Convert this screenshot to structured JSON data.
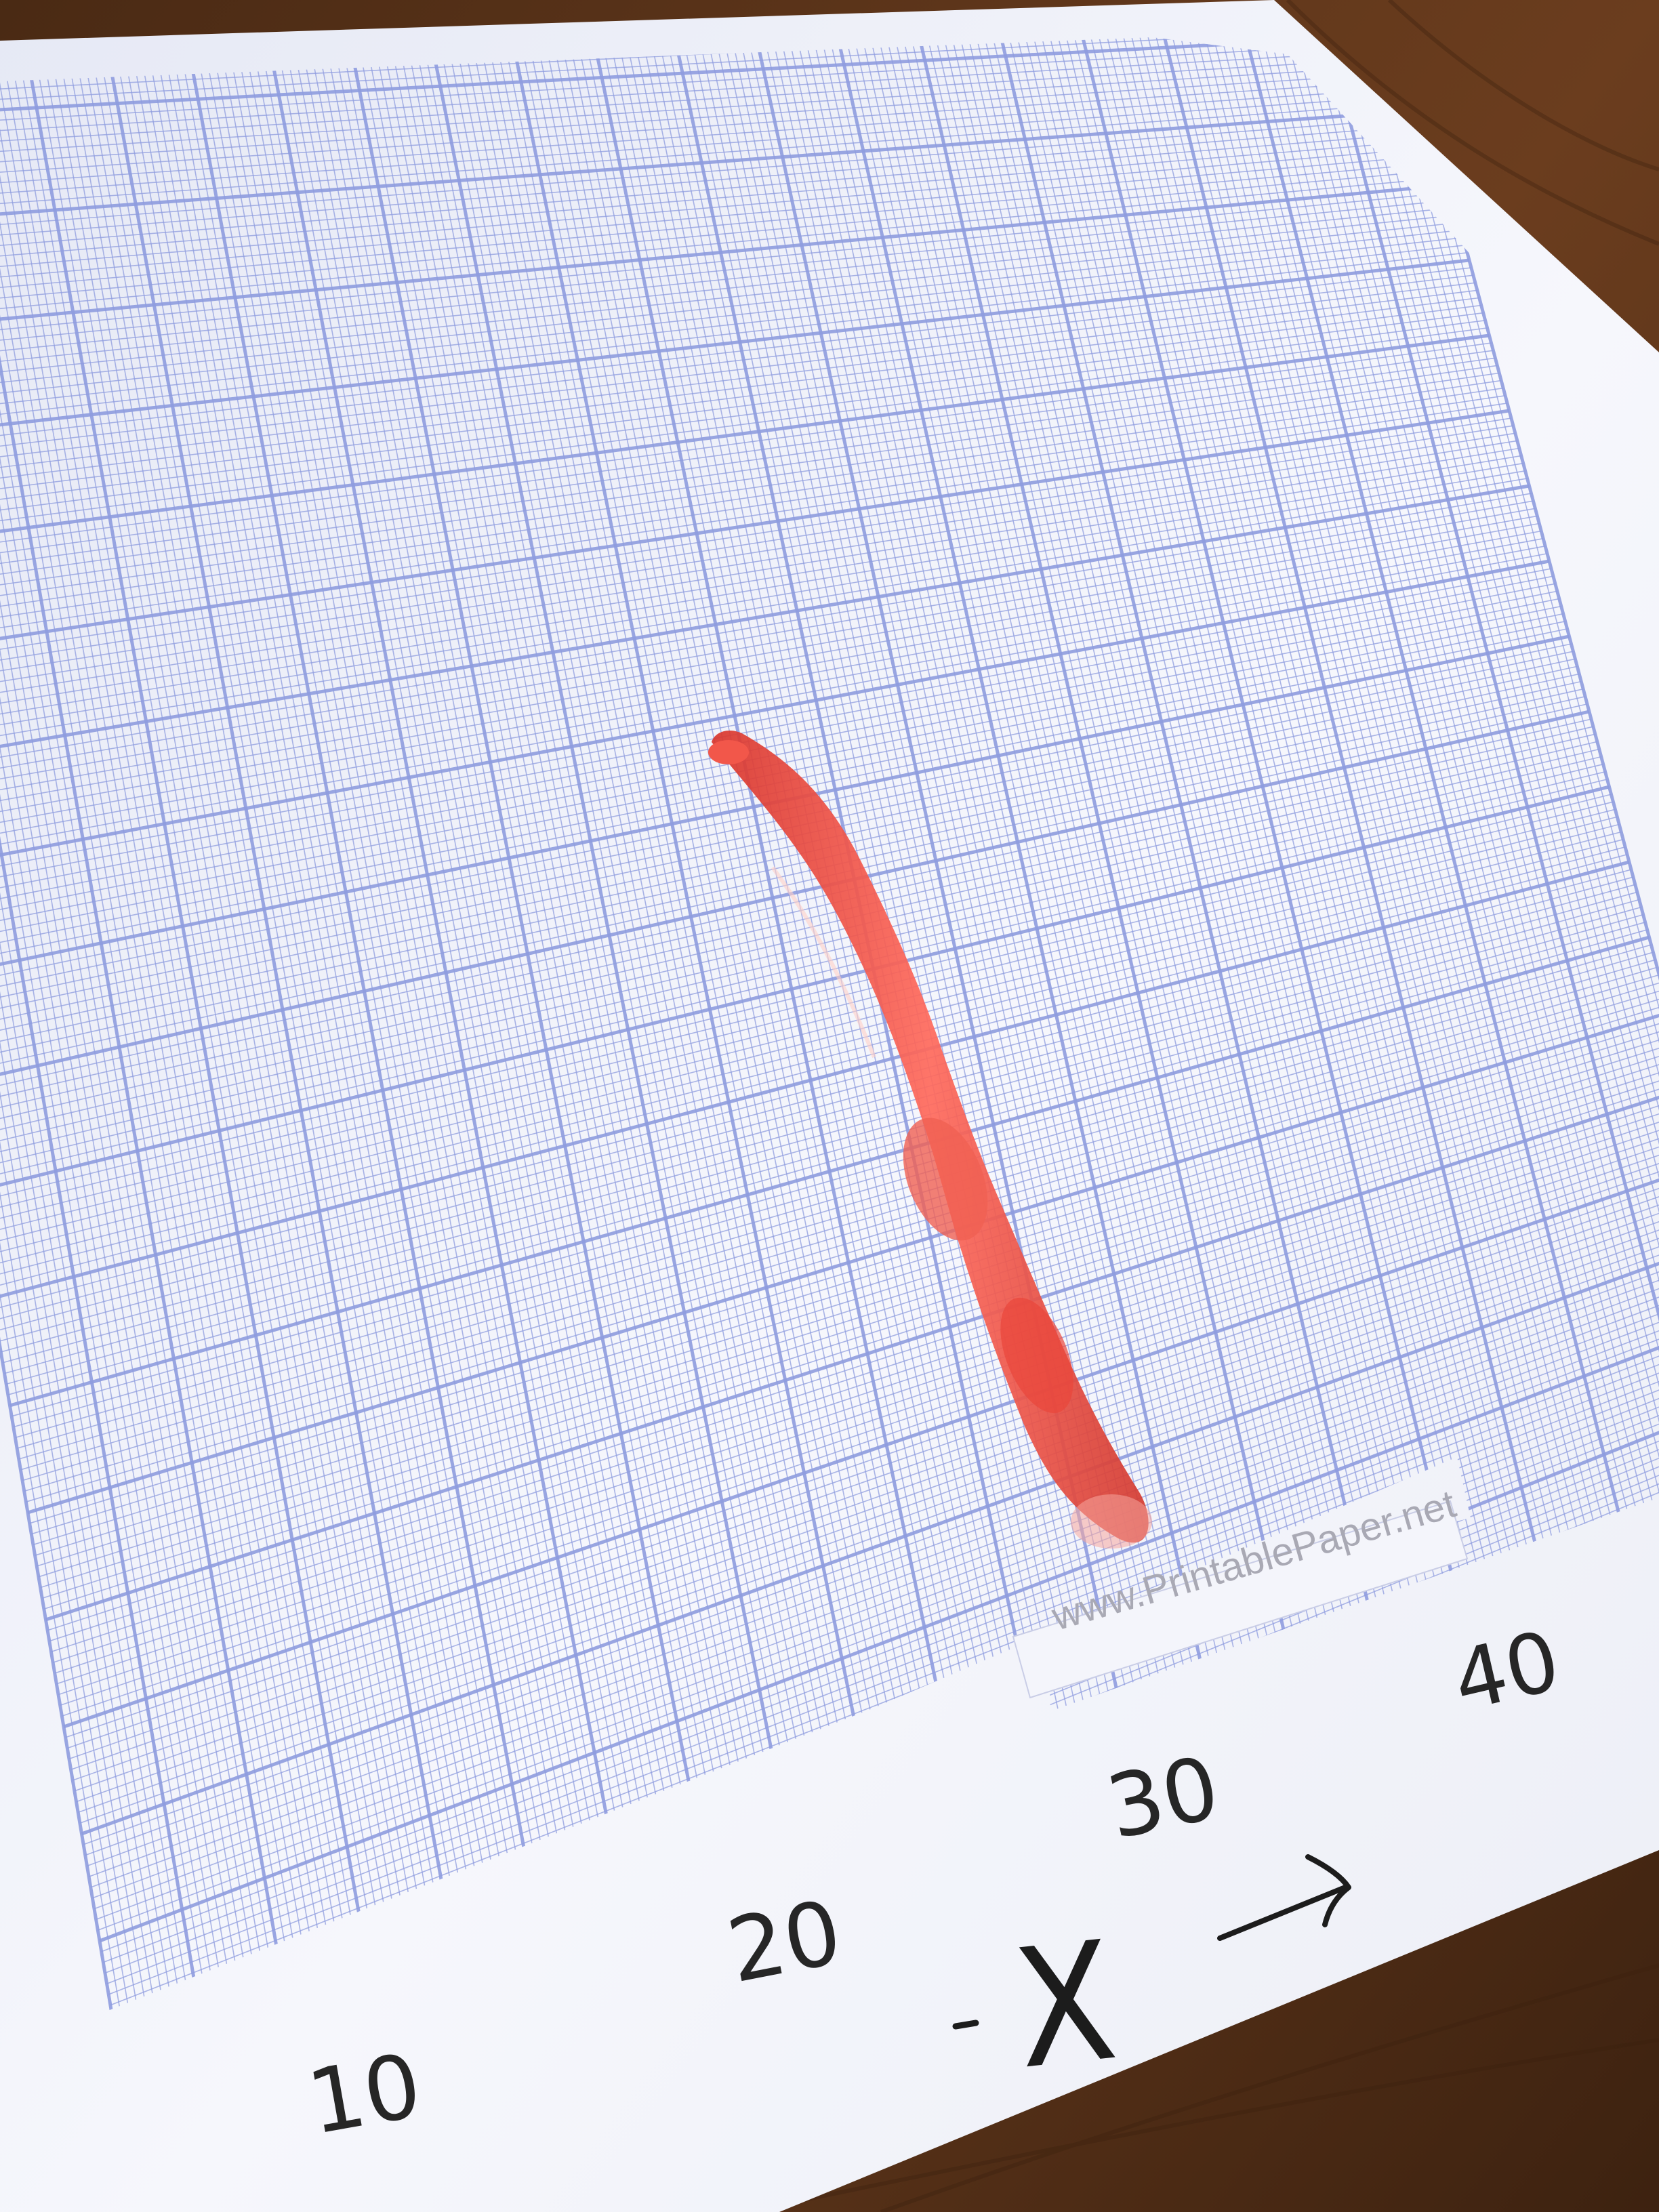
{
  "paper": {
    "watermark": "www.PrintablePaper.net",
    "axis_labels": [
      "10",
      "20",
      "30",
      "40"
    ],
    "axis_name": "X",
    "grid_color": "#8f9ddf",
    "paper_color": "#f4f5fb"
  },
  "scene": {
    "table_color": "#5a3319",
    "drawn_line_color": "#e8463c",
    "icons": [
      "arrow-right-icon"
    ]
  }
}
